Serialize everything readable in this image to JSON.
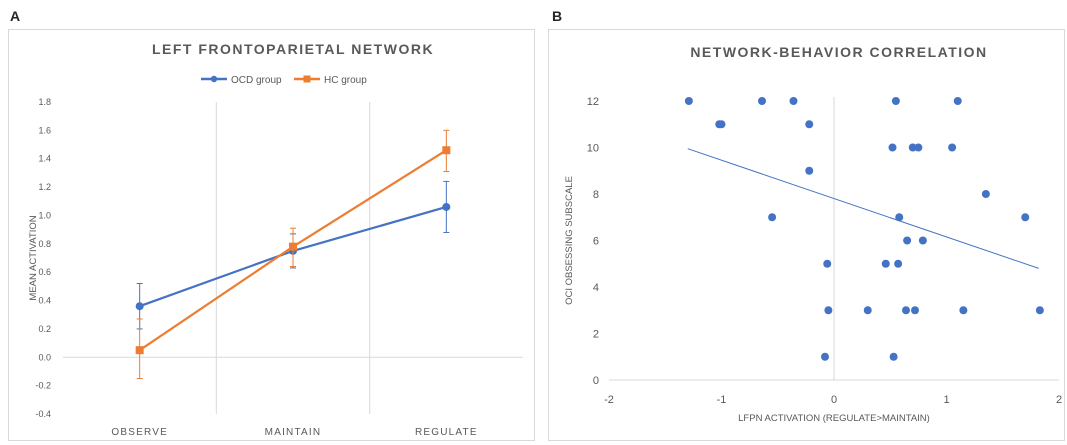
{
  "panels": {
    "a": {
      "letter": "A"
    },
    "b": {
      "letter": "B"
    }
  },
  "chart_data": [
    {
      "type": "line",
      "title": "LEFT FRONTOPARIETAL NETWORK",
      "xlabel": "",
      "ylabel": "MEAN ACTIVATION",
      "categories": [
        "OBSERVE",
        "MAINTAIN",
        "REGULATE"
      ],
      "ylim": [
        -0.4,
        1.8
      ],
      "yticks": [
        -0.4,
        -0.2,
        0.0,
        0.2,
        0.4,
        0.6,
        0.8,
        1.0,
        1.2,
        1.4,
        1.6,
        1.8
      ],
      "legend_position": "top",
      "grid": "vertical",
      "series": [
        {
          "name": "OCD group",
          "color": "#4472c4",
          "marker": "circle",
          "values": [
            0.36,
            0.75,
            1.06
          ],
          "error_low": [
            0.2,
            0.63,
            0.88
          ],
          "error_high": [
            0.52,
            0.87,
            1.24
          ]
        },
        {
          "name": "HC group",
          "color": "#ed7d31",
          "marker": "square",
          "values": [
            0.05,
            0.78,
            1.46
          ],
          "error_low": [
            -0.15,
            0.64,
            1.31
          ],
          "error_high": [
            0.27,
            0.91,
            1.6
          ]
        }
      ]
    },
    {
      "type": "scatter",
      "title": "NETWORK-BEHAVIOR CORRELATION",
      "xlabel": "LFPN ACTIVATION (REGULATE>MAINTAIN)",
      "ylabel": "OCI OBSESSING SUBSCALE",
      "xlim": [
        -2,
        2
      ],
      "ylim": [
        0,
        12
      ],
      "xticks": [
        -2,
        -1,
        0,
        1,
        2
      ],
      "yticks": [
        0,
        2,
        4,
        6,
        8,
        10,
        12
      ],
      "color": "#4472c4",
      "trendline": {
        "x": [
          -1.3,
          1.82
        ],
        "y": [
          9.95,
          4.8
        ]
      },
      "points": [
        {
          "x": -1.29,
          "y": 12
        },
        {
          "x": -0.64,
          "y": 12
        },
        {
          "x": -0.36,
          "y": 12
        },
        {
          "x": 0.55,
          "y": 12
        },
        {
          "x": 1.1,
          "y": 12
        },
        {
          "x": -1.02,
          "y": 11
        },
        {
          "x": -1.0,
          "y": 11
        },
        {
          "x": -0.22,
          "y": 11
        },
        {
          "x": 0.52,
          "y": 10
        },
        {
          "x": 0.7,
          "y": 10
        },
        {
          "x": 0.75,
          "y": 10
        },
        {
          "x": 1.05,
          "y": 10
        },
        {
          "x": -0.22,
          "y": 9
        },
        {
          "x": 1.35,
          "y": 8
        },
        {
          "x": -0.55,
          "y": 7
        },
        {
          "x": 0.58,
          "y": 7
        },
        {
          "x": 1.7,
          "y": 7
        },
        {
          "x": 0.65,
          "y": 6
        },
        {
          "x": 0.79,
          "y": 6
        },
        {
          "x": -0.06,
          "y": 5
        },
        {
          "x": 0.46,
          "y": 5
        },
        {
          "x": 0.57,
          "y": 5
        },
        {
          "x": -0.05,
          "y": 3
        },
        {
          "x": 0.3,
          "y": 3
        },
        {
          "x": 0.64,
          "y": 3
        },
        {
          "x": 0.72,
          "y": 3
        },
        {
          "x": 1.15,
          "y": 3
        },
        {
          "x": 1.83,
          "y": 3
        },
        {
          "x": -0.08,
          "y": 1
        },
        {
          "x": 0.53,
          "y": 1
        }
      ]
    }
  ]
}
